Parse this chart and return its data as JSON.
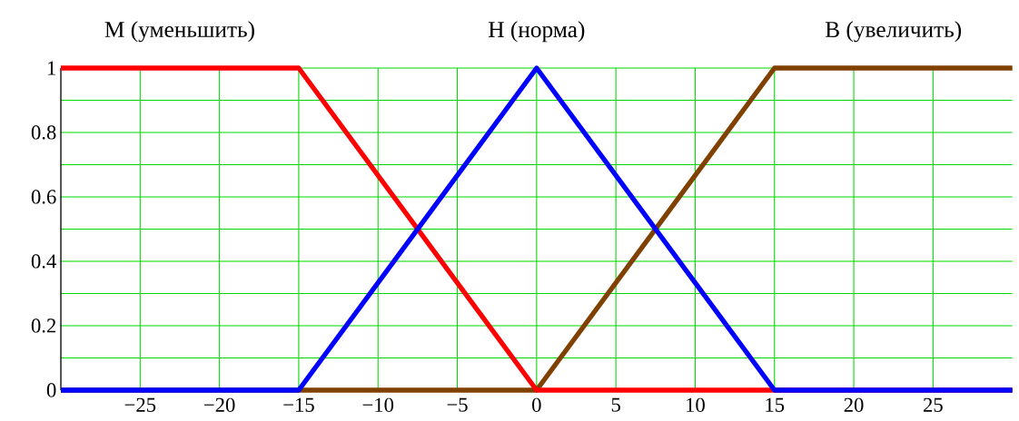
{
  "chart_data": {
    "type": "line",
    "series": [
      {
        "name": "М (уменьшить)",
        "color": "#ff0000",
        "x": [
          -30,
          -15,
          0,
          30
        ],
        "values": [
          1,
          1,
          0,
          0
        ]
      },
      {
        "name": "Н (норма)",
        "color": "#0000ff",
        "x": [
          -30,
          -15,
          0,
          15,
          30
        ],
        "values": [
          0,
          0,
          1,
          0,
          0
        ]
      },
      {
        "name": "В (увеличить)",
        "color": "#804000",
        "x": [
          -30,
          0,
          15,
          30
        ],
        "values": [
          0,
          0,
          1,
          1
        ]
      }
    ],
    "xlim": [
      -30,
      30
    ],
    "ylim": [
      0,
      1
    ],
    "xticks": [
      {
        "value": -25,
        "label": "−25"
      },
      {
        "value": -20,
        "label": "−20"
      },
      {
        "value": -15,
        "label": "−15"
      },
      {
        "value": -10,
        "label": "−10"
      },
      {
        "value": -5,
        "label": "−5"
      },
      0,
      5,
      10,
      15,
      20,
      25
    ],
    "yticks": [
      0,
      {
        "value": 0.1,
        "label": null
      },
      0.2,
      {
        "value": 0.3,
        "label": null
      },
      0.4,
      {
        "value": 0.5,
        "label": null
      },
      0.6,
      {
        "value": 0.7,
        "label": null
      },
      0.8,
      {
        "value": 0.9,
        "label": null
      },
      1
    ],
    "grid": true,
    "legend": false,
    "marker": "none",
    "line_style": "solid"
  }
}
